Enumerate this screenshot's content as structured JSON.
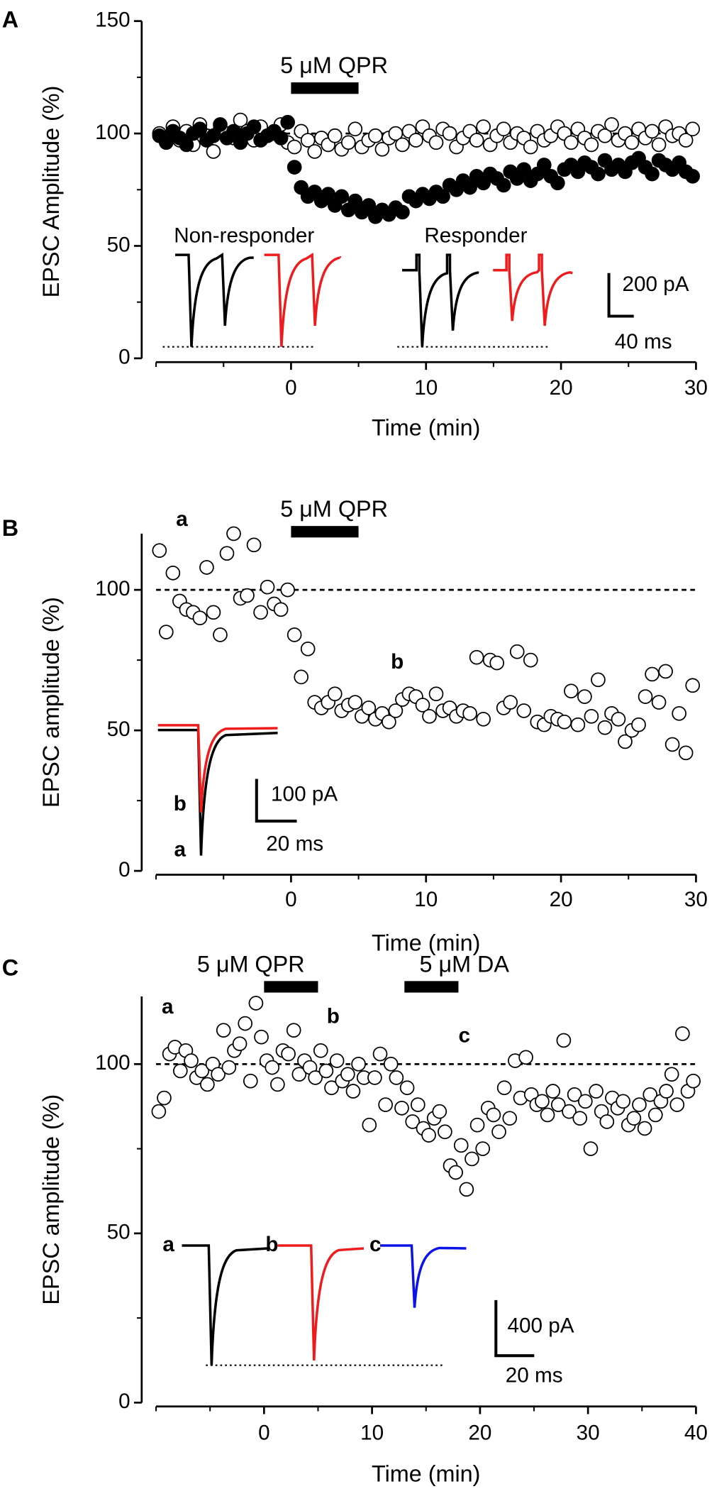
{
  "chart_data": [
    {
      "type": "scatter",
      "panel_label": "A",
      "x_label": "Time (min)",
      "y_label": "EPSC Amplitude (%)",
      "xlim": [
        -10,
        30
      ],
      "xticks": [
        0,
        10,
        20,
        30
      ],
      "xminorticks": [
        -10,
        -5,
        5,
        15,
        25
      ],
      "ylim": [
        0,
        150
      ],
      "yticks": [
        0,
        50,
        100,
        150
      ],
      "yminorticks": [
        25,
        75,
        125
      ],
      "reference_line": 100,
      "treatments": [
        {
          "label": "5 μM QPR",
          "start": 0,
          "end": 5
        }
      ],
      "annotations": [
        {
          "text": "Non-responder",
          "color": "#000000"
        },
        {
          "text": "Responder",
          "color": "#000000"
        },
        {
          "text": "200 pA",
          "color": "#000000"
        },
        {
          "text": "40 ms",
          "color": "#000000"
        }
      ],
      "x": [
        -9.75,
        -9.25,
        -8.75,
        -8.25,
        -7.75,
        -7.25,
        -6.75,
        -6.25,
        -5.75,
        -5.25,
        -4.75,
        -4.25,
        -3.75,
        -3.25,
        -2.75,
        -2.25,
        -1.75,
        -1.25,
        -0.75,
        -0.25,
        0.25,
        0.75,
        1.25,
        1.75,
        2.25,
        2.75,
        3.25,
        3.75,
        4.25,
        4.75,
        5.25,
        5.75,
        6.25,
        6.75,
        7.25,
        7.75,
        8.25,
        8.75,
        9.25,
        9.75,
        10.25,
        10.75,
        11.25,
        11.75,
        12.25,
        12.75,
        13.25,
        13.75,
        14.25,
        14.75,
        15.25,
        15.75,
        16.25,
        16.75,
        17.25,
        17.75,
        18.25,
        18.75,
        19.25,
        19.75,
        20.25,
        20.75,
        21.25,
        21.75,
        22.25,
        22.75,
        23.25,
        23.75,
        24.25,
        24.75,
        25.25,
        25.75,
        26.25,
        26.75,
        27.25,
        27.75,
        28.25,
        28.75,
        29.25,
        29.75
      ],
      "series": [
        {
          "marker": "open",
          "color": "#ffffff",
          "values": [
            100,
            98,
            103,
            97,
            101,
            95,
            104,
            99,
            92,
            102,
            100,
            98,
            106,
            101,
            97,
            103,
            99,
            100,
            104,
            96,
            94,
            101,
            97,
            92,
            98,
            95,
            99,
            93,
            96,
            102,
            94,
            97,
            99,
            93,
            98,
            100,
            95,
            101,
            97,
            103,
            99,
            96,
            102,
            100,
            94,
            98,
            101,
            97,
            103,
            95,
            99,
            102,
            96,
            100,
            98,
            94,
            101,
            97,
            99,
            103,
            100,
            96,
            102,
            98,
            95,
            101,
            99,
            104,
            97,
            100,
            96,
            102,
            98,
            101,
            95,
            103,
            99,
            100,
            97,
            102
          ]
        },
        {
          "marker": "filled",
          "color": "#000000",
          "values": [
            99,
            96,
            101,
            98,
            95,
            100,
            102,
            97,
            99,
            104,
            98,
            101,
            96,
            100,
            103,
            97,
            99,
            101,
            98,
            105,
            85,
            76,
            72,
            74,
            70,
            73,
            68,
            72,
            66,
            70,
            65,
            68,
            63,
            66,
            64,
            67,
            65,
            72,
            70,
            73,
            71,
            74,
            72,
            77,
            75,
            79,
            76,
            81,
            78,
            82,
            80,
            77,
            83,
            80,
            84,
            79,
            82,
            86,
            81,
            78,
            84,
            86,
            83,
            87,
            85,
            82,
            88,
            84,
            86,
            83,
            87,
            89,
            85,
            82,
            88,
            86,
            84,
            87,
            83,
            81
          ]
        }
      ]
    },
    {
      "type": "scatter",
      "panel_label": "B",
      "x_label": "Time (min)",
      "y_label": "EPSC amplitude (%)",
      "xlim": [
        -10,
        30
      ],
      "xticks": [
        0,
        10,
        20,
        30
      ],
      "xminorticks": [
        -10,
        -5,
        5,
        15,
        25
      ],
      "ylim": [
        0,
        120
      ],
      "yticks": [
        0,
        50,
        100
      ],
      "yminorticks": [
        25,
        75
      ],
      "reference_line": 100,
      "treatments": [
        {
          "label": "5 μM QPR",
          "start": 0,
          "end": 5
        }
      ],
      "annotations": [
        {
          "text": "a",
          "color": "#000000"
        },
        {
          "text": "b",
          "color": "#ee1c1c"
        },
        {
          "text": "b",
          "color": "#ee1c1c"
        },
        {
          "text": "a",
          "color": "#000000"
        },
        {
          "text": "100 pA",
          "color": "#000000"
        },
        {
          "text": "20 ms",
          "color": "#000000"
        }
      ],
      "x": [
        -9.75,
        -9.25,
        -8.75,
        -8.25,
        -7.75,
        -7.25,
        -6.75,
        -6.25,
        -5.75,
        -5.25,
        -4.75,
        -4.25,
        -3.75,
        -3.25,
        -2.75,
        -2.25,
        -1.75,
        -1.25,
        -0.75,
        -0.25,
        0.25,
        0.75,
        1.25,
        1.75,
        2.25,
        2.75,
        3.25,
        3.75,
        4.25,
        4.75,
        5.25,
        5.75,
        6.25,
        6.75,
        7.25,
        7.75,
        8.25,
        8.75,
        9.25,
        9.75,
        10.25,
        10.75,
        11.25,
        11.75,
        12.25,
        12.75,
        13.25,
        13.75,
        14.25,
        14.75,
        15.25,
        15.75,
        16.25,
        16.75,
        17.25,
        17.75,
        18.25,
        18.75,
        19.25,
        19.75,
        20.25,
        20.75,
        21.25,
        21.75,
        22.25,
        22.75,
        23.25,
        23.75,
        24.25,
        24.75,
        25.25,
        25.75,
        26.25,
        26.75,
        27.25,
        27.75,
        28.25,
        28.75,
        29.25,
        29.75
      ],
      "series": [
        {
          "marker": "open",
          "color": "#ffffff",
          "values": [
            114,
            85,
            106,
            96,
            93,
            92,
            90,
            108,
            92,
            84,
            113,
            120,
            97,
            98,
            116,
            92,
            101,
            95,
            93,
            100,
            84,
            69,
            79,
            60,
            58,
            60,
            63,
            57,
            59,
            60,
            55,
            58,
            54,
            56,
            53,
            57,
            61,
            63,
            62,
            59,
            55,
            63,
            57,
            58,
            55,
            57,
            56,
            76,
            54,
            75,
            74,
            58,
            60,
            78,
            57,
            75,
            53,
            52,
            55,
            54,
            53,
            64,
            52,
            62,
            55,
            68,
            51,
            56,
            54,
            46,
            50,
            52,
            62,
            70,
            60,
            71,
            45,
            56,
            42,
            66
          ]
        }
      ]
    },
    {
      "type": "scatter",
      "panel_label": "C",
      "x_label": "Time (min)",
      "y_label": "EPSC amplitude (%)",
      "xlim": [
        -10,
        40
      ],
      "xticks": [
        0,
        10,
        20,
        30,
        40
      ],
      "xminorticks": [
        -10,
        -5,
        5,
        15,
        25,
        35
      ],
      "ylim": [
        0,
        120
      ],
      "yticks": [
        0,
        50,
        100
      ],
      "yminorticks": [
        25,
        75
      ],
      "reference_line": 100,
      "treatments": [
        {
          "label": "5 μM QPR",
          "start": 0,
          "end": 5
        },
        {
          "label": "5 μM DA",
          "start": 13,
          "end": 18
        }
      ],
      "annotations": [
        {
          "text": "a",
          "color": "#000000"
        },
        {
          "text": "b",
          "color": "#ee1c1c"
        },
        {
          "text": "c",
          "color": "#3a3ae6"
        },
        {
          "text": "a",
          "color": "#000000"
        },
        {
          "text": "b",
          "color": "#ee1c1c"
        },
        {
          "text": "c",
          "color": "#3a3ae6"
        },
        {
          "text": "400 pA",
          "color": "#000000"
        },
        {
          "text": "20 ms",
          "color": "#000000"
        }
      ],
      "x": [
        -9.75,
        -9.25,
        -8.75,
        -8.25,
        -7.75,
        -7.25,
        -6.75,
        -6.25,
        -5.75,
        -5.25,
        -4.75,
        -4.25,
        -3.75,
        -3.25,
        -2.75,
        -2.25,
        -1.75,
        -1.25,
        -0.75,
        -0.25,
        0.25,
        0.75,
        1.25,
        1.75,
        2.25,
        2.75,
        3.25,
        3.75,
        4.25,
        4.75,
        5.25,
        5.75,
        6.25,
        6.75,
        7.25,
        7.75,
        8.25,
        8.75,
        9.25,
        9.75,
        10.25,
        10.75,
        11.25,
        11.75,
        12.25,
        12.75,
        13.25,
        13.75,
        14.25,
        14.75,
        15.25,
        15.75,
        16.25,
        16.75,
        17.25,
        17.75,
        18.25,
        18.75,
        19.25,
        19.75,
        20.25,
        20.75,
        21.25,
        21.75,
        22.25,
        22.75,
        23.25,
        23.75,
        24.25,
        24.75,
        25.25,
        25.75,
        26.25,
        26.75,
        27.25,
        27.75,
        28.25,
        28.75,
        29.25,
        29.75,
        30.25,
        30.75,
        31.25,
        31.75,
        32.25,
        32.75,
        33.25,
        33.75,
        34.25,
        34.75,
        35.25,
        35.75,
        36.25,
        36.75,
        37.25,
        37.75,
        38.25,
        38.75,
        39.25,
        39.75
      ],
      "series": [
        {
          "marker": "open",
          "color": "#ffffff",
          "values": [
            86,
            90,
            103,
            105,
            98,
            104,
            101,
            96,
            98,
            94,
            100,
            97,
            110,
            99,
            104,
            106,
            112,
            95,
            118,
            108,
            101,
            99,
            94,
            104,
            103,
            110,
            97,
            101,
            99,
            96,
            104,
            98,
            93,
            101,
            95,
            97,
            92,
            100,
            96,
            82,
            96,
            103,
            88,
            100,
            96,
            87,
            93,
            83,
            88,
            81,
            79,
            84,
            86,
            80,
            70,
            68,
            76,
            63,
            72,
            82,
            75,
            87,
            85,
            80,
            93,
            84,
            101,
            90,
            102,
            91,
            88,
            89,
            85,
            92,
            88,
            107,
            86,
            91,
            84,
            89,
            75,
            92,
            86,
            83,
            90,
            87,
            89,
            82,
            84,
            88,
            81,
            91,
            85,
            89,
            92,
            97,
            88,
            109,
            92,
            95
          ]
        }
      ]
    }
  ]
}
